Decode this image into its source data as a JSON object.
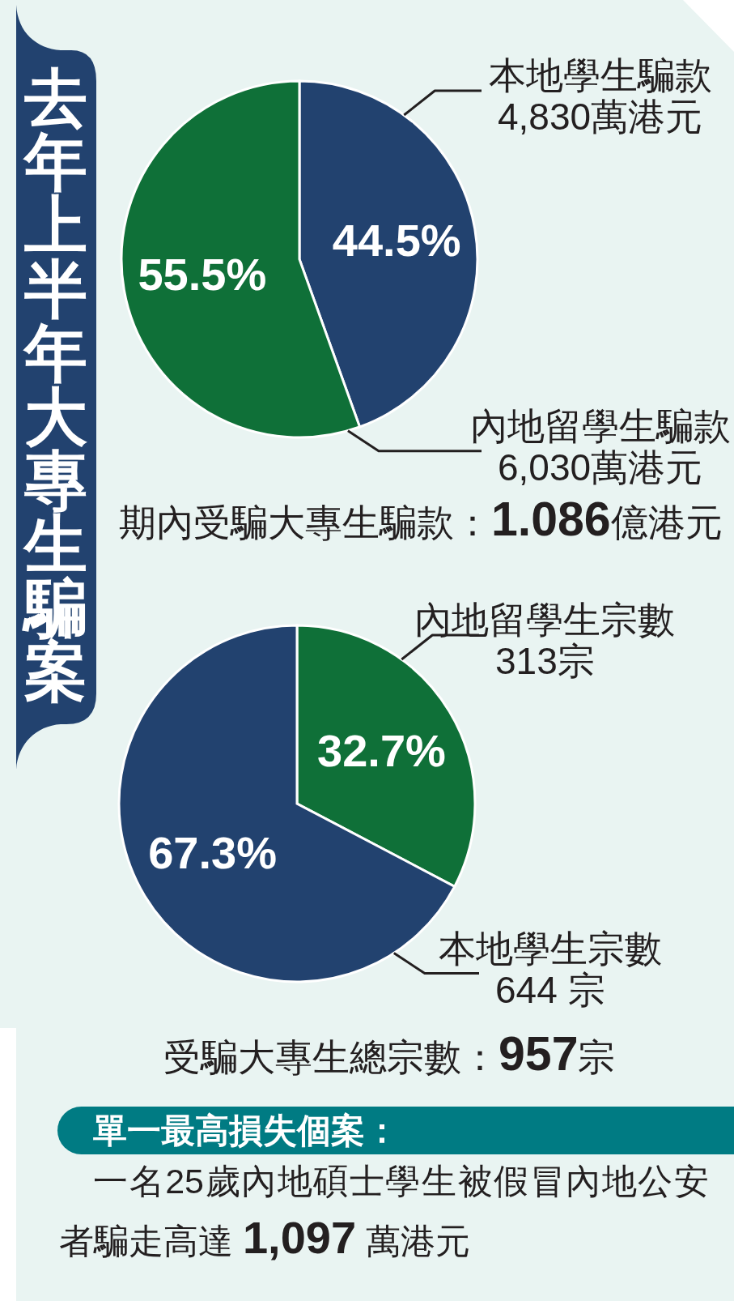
{
  "chart_data": [
    {
      "type": "pie",
      "title": "去年上半年大專生騙案",
      "categories": [
        "本地學生騙款\n4,830萬港元",
        "內地留學生騙款\n6,030萬港元"
      ],
      "values": [
        44.5,
        55.5
      ],
      "value_labels": [
        "44.5%",
        "55.5%"
      ],
      "colors": [
        "#22426f",
        "#0f7038"
      ],
      "annotations": [
        "期內受騙大專生騙款：1.086億港元"
      ]
    },
    {
      "type": "pie",
      "categories": [
        "內地留學生宗數\n313宗",
        "本地學生宗數\n644 宗"
      ],
      "values": [
        32.7,
        67.3
      ],
      "value_labels": [
        "32.7%",
        "67.3%"
      ],
      "colors": [
        "#0f7038",
        "#22426f"
      ],
      "annotations": [
        "受騙大專生總宗數：957宗"
      ]
    },
    {
      "type": "other",
      "title": "單一最高損失個案：",
      "annotations": [
        "一名25歲內地碩士學生被假冒內地公安者騙走高達 1,097 萬港元"
      ]
    }
  ]
}
